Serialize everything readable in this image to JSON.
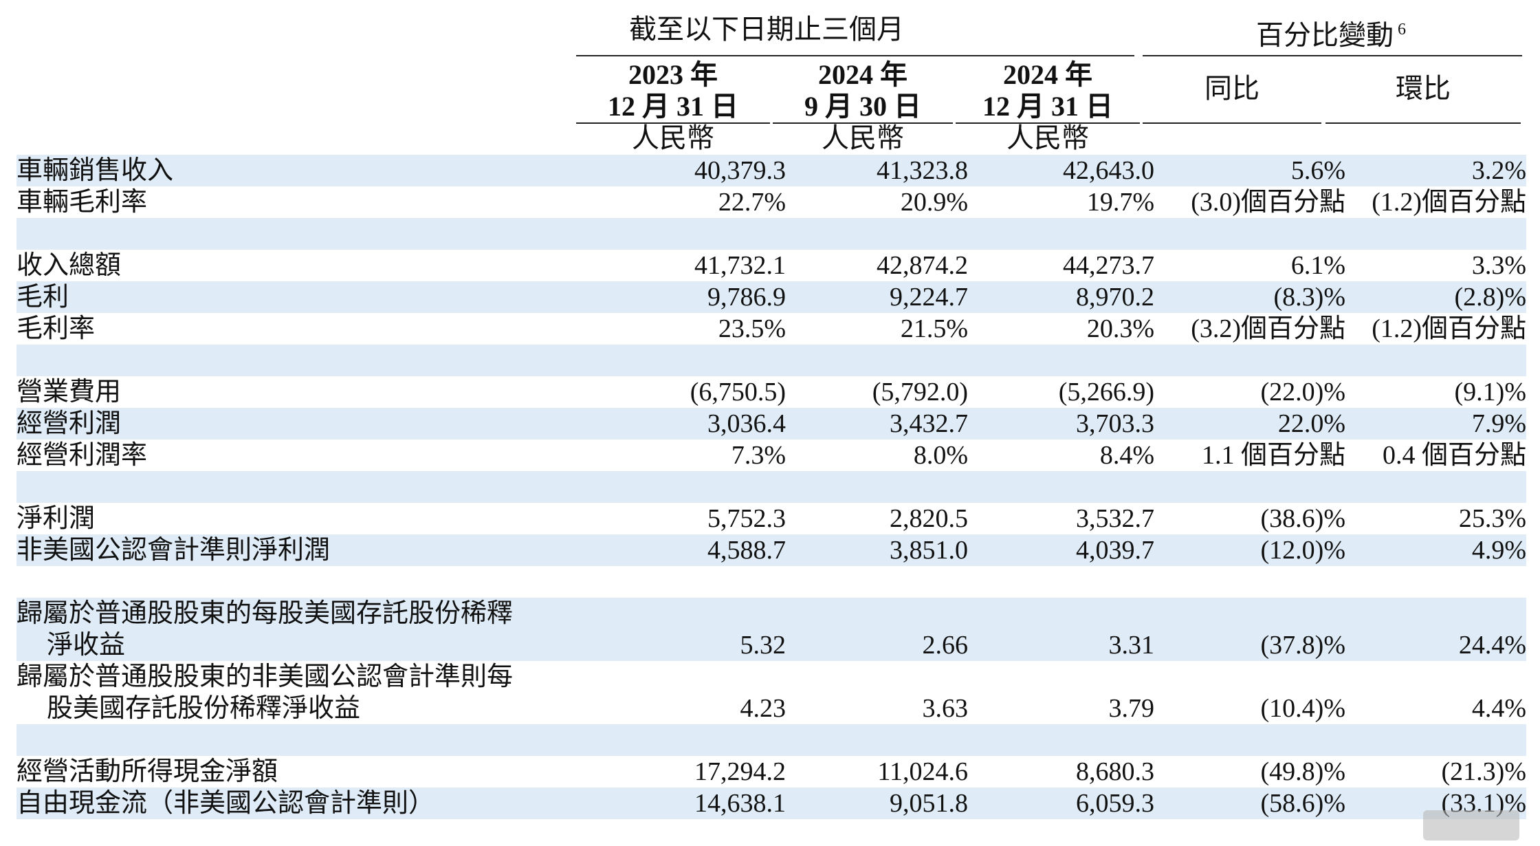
{
  "header": {
    "period_group": "截至以下日期止三個月",
    "change_group": "百分比變動",
    "change_footnote": "6",
    "columns": [
      {
        "year": "2023 年",
        "date": "12 月 31 日",
        "currency": "人民幣"
      },
      {
        "year": "2024 年",
        "date": "9 月 30 日",
        "currency": "人民幣"
      },
      {
        "year": "2024 年",
        "date": "12 月 31 日",
        "currency": "人民幣"
      }
    ],
    "yoy": "同比",
    "qoq": "環比"
  },
  "rows": [
    {
      "label": "車輛銷售收入",
      "v1": "40,379.3",
      "v2": "41,323.8",
      "v3": "42,643.0",
      "yoy": "5.6%",
      "qoq": "3.2%"
    },
    {
      "label": "車輛毛利率",
      "v1": "22.7%",
      "v2": "20.9%",
      "v3": "19.7%",
      "yoy": "(3.0)個百分點",
      "qoq": "(1.2)個百分點"
    },
    {
      "label": "收入總額",
      "v1": "41,732.1",
      "v2": "42,874.2",
      "v3": "44,273.7",
      "yoy": "6.1%",
      "qoq": "3.3%"
    },
    {
      "label": "毛利",
      "v1": "9,786.9",
      "v2": "9,224.7",
      "v3": "8,970.2",
      "yoy": "(8.3)%",
      "qoq": "(2.8)%"
    },
    {
      "label": "毛利率",
      "v1": "23.5%",
      "v2": "21.5%",
      "v3": "20.3%",
      "yoy": "(3.2)個百分點",
      "qoq": "(1.2)個百分點"
    },
    {
      "label": "營業費用",
      "v1": "(6,750.5)",
      "v2": "(5,792.0)",
      "v3": "(5,266.9)",
      "yoy": "(22.0)%",
      "qoq": "(9.1)%"
    },
    {
      "label": "經營利潤",
      "v1": "3,036.4",
      "v2": "3,432.7",
      "v3": "3,703.3",
      "yoy": "22.0%",
      "qoq": "7.9%"
    },
    {
      "label": "經營利潤率",
      "v1": "7.3%",
      "v2": "8.0%",
      "v3": "8.4%",
      "yoy": "1.1 個百分點",
      "qoq": "0.4 個百分點"
    },
    {
      "label": "淨利潤",
      "v1": "5,752.3",
      "v2": "2,820.5",
      "v3": "3,532.7",
      "yoy": "(38.6)%",
      "qoq": "25.3%"
    },
    {
      "label": "非美國公認會計準則淨利潤",
      "v1": "4,588.7",
      "v2": "3,851.0",
      "v3": "4,039.7",
      "yoy": "(12.0)%",
      "qoq": "4.9%"
    },
    {
      "label": "歸屬於普通股股東的每股美國存託股份稀釋",
      "label2": "淨收益",
      "v1": "5.32",
      "v2": "2.66",
      "v3": "3.31",
      "yoy": "(37.8)%",
      "qoq": "24.4%"
    },
    {
      "label": "歸屬於普通股股東的非美國公認會計準則每",
      "label2": "股美國存託股份稀釋淨收益",
      "v1": "4.23",
      "v2": "3.63",
      "v3": "3.79",
      "yoy": "(10.4)%",
      "qoq": "4.4%"
    },
    {
      "label": "經營活動所得現金淨額",
      "v1": "17,294.2",
      "v2": "11,024.6",
      "v3": "8,680.3",
      "yoy": "(49.8)%",
      "qoq": "(21.3)%"
    },
    {
      "label": "自由現金流（非美國公認會計準則）",
      "v1": "14,638.1",
      "v2": "9,051.8",
      "v3": "6,059.3",
      "yoy": "(58.6)%",
      "qoq": "(33.1)%"
    }
  ]
}
